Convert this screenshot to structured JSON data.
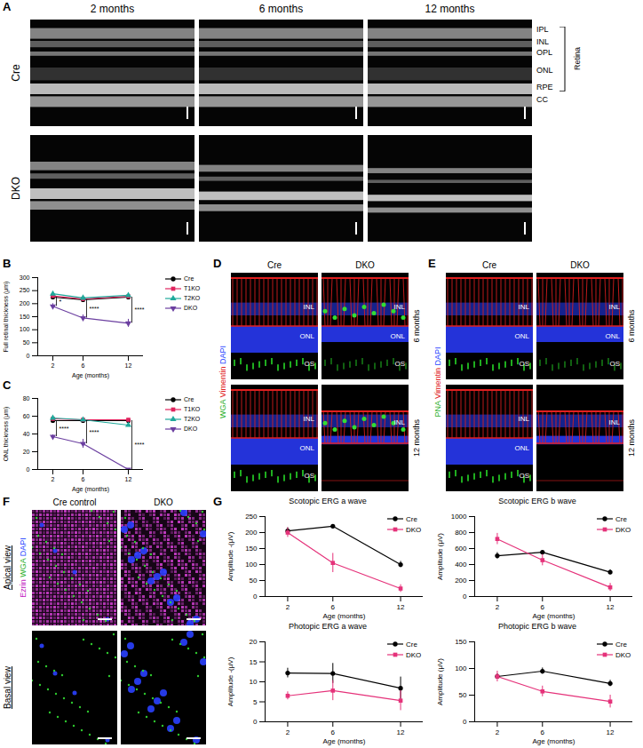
{
  "panels": {
    "A": {
      "letter": "A",
      "columns": [
        "2 months",
        "6 months",
        "12 months"
      ],
      "rows": [
        "Cre",
        "DKO"
      ],
      "layers": [
        "IPL",
        "INL",
        "OPL",
        "ONL",
        "RPE",
        "CC"
      ],
      "bracket_label": "Retina"
    },
    "D": {
      "letter": "D",
      "stain": [
        {
          "text": "WGA",
          "color": "#1fae1f"
        },
        {
          "text": "Vimentin",
          "color": "#e02020"
        },
        {
          "text": "DAPI",
          "color": "#2040ff"
        }
      ],
      "columns": [
        "Cre",
        "DKO"
      ],
      "rows": [
        "6 months",
        "12 months"
      ],
      "layer_labels": [
        [
          [
            "INL",
            "ONL",
            "OS"
          ],
          [
            "INL",
            "ONL",
            "OS"
          ]
        ],
        [
          [
            "INL",
            "ONL",
            "OS"
          ],
          [
            "INL"
          ]
        ]
      ]
    },
    "E": {
      "letter": "E",
      "stain": [
        {
          "text": "PNA",
          "color": "#1fae1f"
        },
        {
          "text": "Vimentin",
          "color": "#e02020"
        },
        {
          "text": "DAPI",
          "color": "#2040ff"
        }
      ],
      "columns": [
        "Cre",
        "DKO"
      ],
      "rows": [
        "6 months",
        "12 months"
      ],
      "layer_labels": [
        [
          [
            "INL",
            "ONL",
            "OS"
          ],
          [
            "INL",
            "ONL",
            "OS"
          ]
        ],
        [
          [
            "INL",
            "ONL",
            "OS"
          ],
          [
            "INL"
          ]
        ]
      ]
    },
    "F": {
      "letter": "F",
      "stain": [
        {
          "text": "Ezrin",
          "color": "#c020c0"
        },
        {
          "text": "WGA",
          "color": "#1fae1f"
        },
        {
          "text": "DAPI",
          "color": "#2040ff"
        }
      ],
      "columns": [
        "Cre control",
        "DKO"
      ],
      "rows": [
        "Apical view",
        "Basal view"
      ]
    },
    "G": {
      "letter": "G"
    }
  },
  "chart_data": [
    {
      "panel_label": "B",
      "type": "line",
      "x": [
        2,
        6,
        12
      ],
      "xlim": [
        0,
        14
      ],
      "xticks": [
        2,
        6,
        12
      ],
      "x_label": "Age (months)",
      "y_label": "Full retinal thickness (μm)",
      "ylim": [
        0,
        300
      ],
      "yticks": [
        0,
        50,
        100,
        150,
        200,
        250,
        300
      ],
      "legend": "right",
      "series": [
        {
          "name": "Cre",
          "color": "#000000",
          "marker": "circle",
          "values": [
            225,
            215,
            225
          ],
          "errors": [
            4,
            3,
            3
          ]
        },
        {
          "name": "T1KO",
          "color": "#e0245e",
          "marker": "square",
          "values": [
            230,
            218,
            228
          ],
          "errors": [
            3,
            3,
            3
          ]
        },
        {
          "name": "T2KO",
          "color": "#1fa99b",
          "marker": "triangle",
          "values": [
            238,
            222,
            232
          ],
          "errors": [
            3,
            3,
            3
          ]
        },
        {
          "name": "DKO",
          "color": "#6b3fa0",
          "marker": "triangle-down",
          "values": [
            190,
            145,
            125
          ],
          "errors": [
            10,
            12,
            15
          ]
        }
      ],
      "annotations": [
        {
          "x": 2,
          "text": "*"
        },
        {
          "x": 6,
          "text": "****"
        },
        {
          "x": 12,
          "text": "****"
        }
      ]
    },
    {
      "panel_label": "C",
      "type": "line",
      "x": [
        2,
        6,
        12
      ],
      "xlim": [
        0,
        14
      ],
      "xticks": [
        2,
        6,
        12
      ],
      "x_label": "Age (months)",
      "y_label": "ONL thickness (μm)",
      "ylim": [
        0,
        80
      ],
      "yticks": [
        0,
        20,
        40,
        60,
        80
      ],
      "legend": "right",
      "series": [
        {
          "name": "Cre",
          "color": "#000000",
          "marker": "circle",
          "values": [
            55,
            55,
            55
          ],
          "errors": [
            1,
            1,
            1
          ]
        },
        {
          "name": "T1KO",
          "color": "#e0245e",
          "marker": "square",
          "values": [
            57,
            56,
            56
          ],
          "errors": [
            1,
            1,
            1
          ]
        },
        {
          "name": "T2KO",
          "color": "#1fa99b",
          "marker": "triangle",
          "values": [
            58,
            56,
            50
          ],
          "errors": [
            1,
            1,
            2
          ]
        },
        {
          "name": "DKO",
          "color": "#6b3fa0",
          "marker": "triangle-down",
          "values": [
            37,
            29,
            0
          ],
          "errors": [
            2,
            5,
            1
          ]
        }
      ],
      "annotations": [
        {
          "x": 2,
          "text": "****"
        },
        {
          "x": 6,
          "text": "****"
        },
        {
          "x": 12,
          "text": "****"
        }
      ]
    },
    {
      "panel_label": "G",
      "type": "line",
      "title": "Scotopic ERG a wave",
      "x": [
        2,
        6,
        12
      ],
      "xlim": [
        0,
        14
      ],
      "xticks": [
        2,
        6,
        12
      ],
      "x_label": "Age (months)",
      "y_label": "Amplitude -(μV)",
      "ylim": [
        0,
        250
      ],
      "yticks": [
        0,
        50,
        100,
        150,
        200,
        250
      ],
      "legend": "top-right",
      "series": [
        {
          "name": "Cre",
          "color": "#000000",
          "marker": "circle",
          "values": [
            205,
            220,
            100
          ],
          "errors": [
            10,
            5,
            10
          ]
        },
        {
          "name": "DKO",
          "color": "#e5327a",
          "marker": "square",
          "values": [
            200,
            105,
            25
          ],
          "errors": [
            15,
            30,
            12
          ]
        }
      ]
    },
    {
      "type": "line",
      "title": "Scotopic ERG b wave",
      "x": [
        2,
        6,
        12
      ],
      "xlim": [
        0,
        14
      ],
      "xticks": [
        2,
        6,
        12
      ],
      "x_label": "Age (months)",
      "y_label": "Amplitude (μV)",
      "ylim": [
        0,
        1000
      ],
      "yticks": [
        0,
        200,
        400,
        600,
        800,
        1000
      ],
      "legend": "top-right",
      "series": [
        {
          "name": "Cre",
          "color": "#000000",
          "marker": "circle",
          "values": [
            510,
            555,
            305
          ],
          "errors": [
            40,
            10,
            30
          ]
        },
        {
          "name": "DKO",
          "color": "#e5327a",
          "marker": "square",
          "values": [
            720,
            455,
            115
          ],
          "errors": [
            70,
            70,
            50
          ]
        }
      ]
    },
    {
      "type": "line",
      "title": "Photopic ERG a wave",
      "x": [
        2,
        6,
        12
      ],
      "xlim": [
        0,
        14
      ],
      "xticks": [
        2,
        6,
        12
      ],
      "x_label": "Age (months)",
      "y_label": "Amplitude -(μV)",
      "ylim": [
        0,
        20
      ],
      "yticks": [
        0,
        5,
        10,
        15,
        20
      ],
      "legend": "top-right",
      "series": [
        {
          "name": "Cre",
          "color": "#000000",
          "marker": "circle",
          "values": [
            12.2,
            12.1,
            8.4
          ],
          "errors": [
            1.2,
            2.5,
            2.8
          ]
        },
        {
          "name": "DKO",
          "color": "#e5327a",
          "marker": "square",
          "values": [
            6.5,
            7.8,
            5.3
          ],
          "errors": [
            1,
            2.5,
            2.5
          ]
        }
      ]
    },
    {
      "type": "line",
      "title": "Photopic ERG b wave",
      "x": [
        2,
        6,
        12
      ],
      "xlim": [
        0,
        14
      ],
      "xticks": [
        2,
        6,
        12
      ],
      "x_label": "Age (months)",
      "y_label": "Amplitude (μV)",
      "ylim": [
        0,
        150
      ],
      "yticks": [
        0,
        50,
        100,
        150
      ],
      "legend": "top-right",
      "series": [
        {
          "name": "Cre",
          "color": "#000000",
          "marker": "circle",
          "values": [
            85,
            95,
            72
          ],
          "errors": [
            5,
            6,
            6
          ]
        },
        {
          "name": "DKO",
          "color": "#e5327a",
          "marker": "square",
          "values": [
            85,
            57,
            38
          ],
          "errors": [
            10,
            10,
            12
          ]
        }
      ]
    }
  ]
}
